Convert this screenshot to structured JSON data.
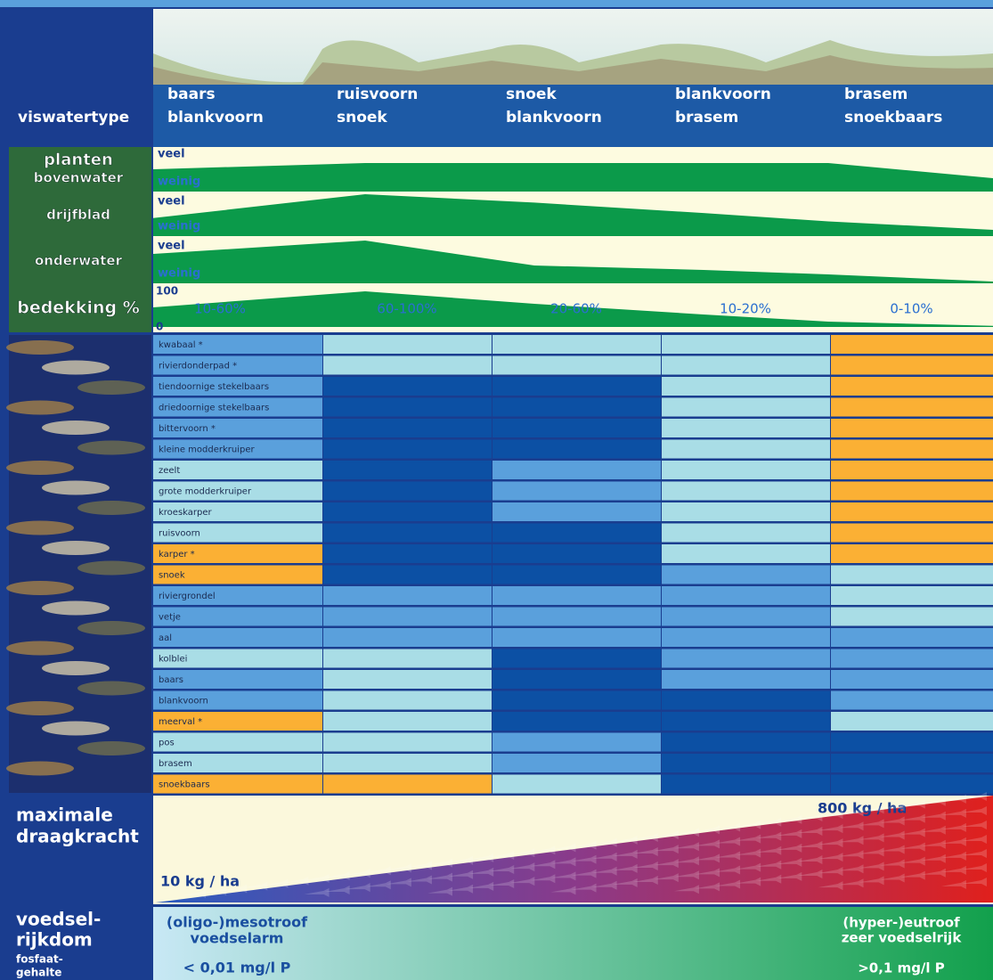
{
  "header": {
    "label": "viswatertype",
    "columns": [
      [
        "baars",
        "blankvoorn"
      ],
      [
        "ruisvoorn",
        "snoek"
      ],
      [
        "snoek",
        "blankvoorn"
      ],
      [
        "blankvoorn",
        "brasem"
      ],
      [
        "brasem",
        "snoekbaars"
      ]
    ]
  },
  "plants": {
    "rows": [
      {
        "label": [
          "planten",
          "bovenwater"
        ],
        "top": "veel",
        "bottom": "weinig",
        "color": "#0b9a4a",
        "values": [
          50,
          64,
          64,
          64,
          64,
          30
        ]
      },
      {
        "label": [
          "drijfblad"
        ],
        "top": "veel",
        "bottom": "weinig",
        "color": "#0b9a4a",
        "values": [
          43,
          100,
          80,
          55,
          35,
          15
        ]
      },
      {
        "label": [
          "onderwater"
        ],
        "top": "veel",
        "bottom": "weinig",
        "color": "#0b9a4a",
        "values": [
          66,
          96,
          40,
          30,
          20,
          4
        ]
      },
      {
        "label": [
          "bedekking %"
        ],
        "ylim": [
          0,
          100
        ],
        "yticks": [
          0,
          100
        ],
        "color": "#0b9a4a",
        "values": [
          55,
          100,
          65,
          35,
          15,
          3
        ],
        "column_labels": [
          "10-60%",
          "60-100%",
          "20-60%",
          "10-20%",
          "0-10%"
        ]
      }
    ]
  },
  "fish": {
    "rows": [
      {
        "name": "kwabaal *",
        "colors": [
          "#5aa0dc",
          "#a9dde6",
          "#a9dde6",
          "#a9dde6",
          "#fbb034"
        ]
      },
      {
        "name": "rivierdonderpad *",
        "colors": [
          "#5aa0dc",
          "#a9dde6",
          "#a9dde6",
          "#a9dde6",
          "#fbb034"
        ]
      },
      {
        "name": "tiendoornige stekelbaars",
        "colors": [
          "#5aa0dc",
          "#0c50a4",
          "#0c50a4",
          "#a9dde6",
          "#fbb034"
        ]
      },
      {
        "name": "driedoornige stekelbaars",
        "colors": [
          "#5aa0dc",
          "#0c50a4",
          "#0c50a4",
          "#a9dde6",
          "#fbb034"
        ]
      },
      {
        "name": "bittervoorn *",
        "colors": [
          "#5aa0dc",
          "#0c50a4",
          "#0c50a4",
          "#a9dde6",
          "#fbb034"
        ]
      },
      {
        "name": "kleine modderkruiper",
        "colors": [
          "#5aa0dc",
          "#0c50a4",
          "#0c50a4",
          "#a9dde6",
          "#fbb034"
        ]
      },
      {
        "name": "zeelt",
        "colors": [
          "#a9dde6",
          "#0c50a4",
          "#5aa0dc",
          "#a9dde6",
          "#fbb034"
        ]
      },
      {
        "name": "grote modderkruiper",
        "colors": [
          "#a9dde6",
          "#0c50a4",
          "#5aa0dc",
          "#a9dde6",
          "#fbb034"
        ]
      },
      {
        "name": "kroeskarper",
        "colors": [
          "#a9dde6",
          "#0c50a4",
          "#5aa0dc",
          "#a9dde6",
          "#fbb034"
        ]
      },
      {
        "name": "ruisvoorn",
        "colors": [
          "#a9dde6",
          "#0c50a4",
          "#0c50a4",
          "#a9dde6",
          "#fbb034"
        ]
      },
      {
        "name": "karper *",
        "colors": [
          "#fbb034",
          "#0c50a4",
          "#0c50a4",
          "#a9dde6",
          "#fbb034"
        ]
      },
      {
        "name": "snoek",
        "colors": [
          "#fbb034",
          "#0c50a4",
          "#0c50a4",
          "#5aa0dc",
          "#a9dde6"
        ]
      },
      {
        "name": "riviergrondel",
        "colors": [
          "#5aa0dc",
          "#5aa0dc",
          "#5aa0dc",
          "#5aa0dc",
          "#a9dde6"
        ]
      },
      {
        "name": "vetje",
        "colors": [
          "#5aa0dc",
          "#5aa0dc",
          "#5aa0dc",
          "#5aa0dc",
          "#a9dde6"
        ]
      },
      {
        "name": "aal",
        "colors": [
          "#5aa0dc",
          "#5aa0dc",
          "#5aa0dc",
          "#5aa0dc",
          "#5aa0dc"
        ]
      },
      {
        "name": "kolblei",
        "colors": [
          "#a9dde6",
          "#a9dde6",
          "#0c50a4",
          "#5aa0dc",
          "#5aa0dc"
        ]
      },
      {
        "name": "baars",
        "colors": [
          "#5aa0dc",
          "#a9dde6",
          "#0c50a4",
          "#5aa0dc",
          "#5aa0dc"
        ]
      },
      {
        "name": "blankvoorn",
        "colors": [
          "#5aa0dc",
          "#a9dde6",
          "#0c50a4",
          "#0c50a4",
          "#5aa0dc"
        ]
      },
      {
        "name": "meerval *",
        "colors": [
          "#fbb034",
          "#a9dde6",
          "#0c50a4",
          "#0c50a4",
          "#a9dde6"
        ]
      },
      {
        "name": "pos",
        "colors": [
          "#a9dde6",
          "#a9dde6",
          "#5aa0dc",
          "#0c50a4",
          "#0c50a4"
        ]
      },
      {
        "name": "brasem",
        "colors": [
          "#a9dde6",
          "#a9dde6",
          "#5aa0dc",
          "#0c50a4",
          "#0c50a4"
        ]
      },
      {
        "name": "snoekbaars",
        "colors": [
          "#fbb034",
          "#fbb034",
          "#a9dde6",
          "#0c50a4",
          "#0c50a4"
        ]
      }
    ]
  },
  "capacity": {
    "label": [
      "maximale",
      "draagkracht"
    ],
    "min": "10 kg / ha",
    "max": "800 kg / ha"
  },
  "nutrients": {
    "label": [
      "voedsel-",
      "rijkdom"
    ],
    "sublabel": [
      "fosfaat-",
      "gehalte"
    ],
    "low": {
      "title": [
        "(oligo-)mesotroof",
        "voedselarm"
      ],
      "value": "< 0,01 mg/l P"
    },
    "high": {
      "title": [
        "(hyper-)eutroof",
        "zeer voedselrijk"
      ],
      "value": ">0,1 mg/l P"
    }
  }
}
